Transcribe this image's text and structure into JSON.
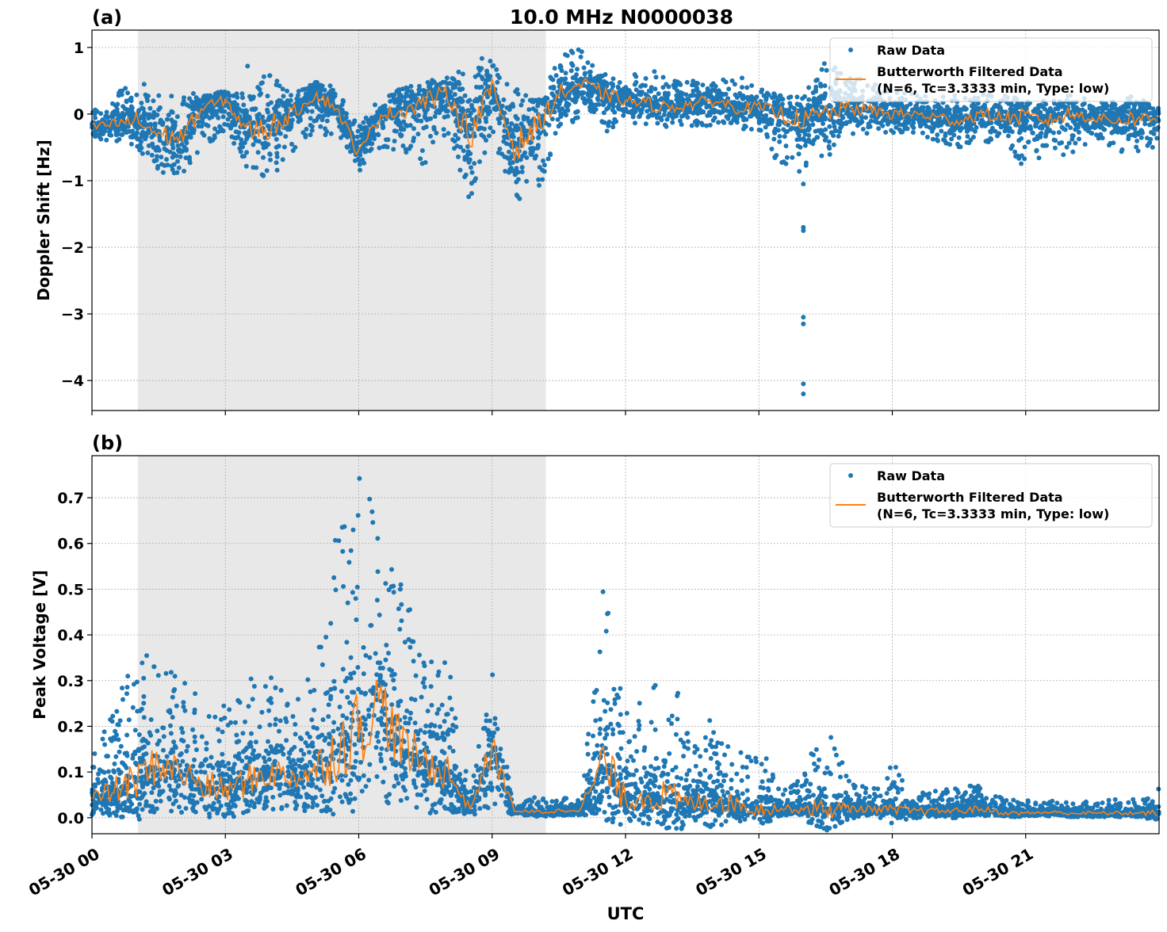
{
  "figure_title": "10.0 MHz N0000038",
  "xlabel": "UTC",
  "x_ticks": [
    "05-30 00",
    "05-30 03",
    "05-30 06",
    "05-30 09",
    "05-30 12",
    "05-30 15",
    "05-30 18",
    "05-30 21"
  ],
  "x_tick_hours": [
    0,
    3,
    6,
    9,
    12,
    15,
    18,
    21
  ],
  "x_range_hours": [
    0,
    24
  ],
  "shaded_span_hours": [
    1.03,
    10.21
  ],
  "colors": {
    "raw": "#1f77b4",
    "filtered": "#ff7f0e",
    "shade": "#e8e8e8",
    "grid": "#b0b0b0"
  },
  "legend": {
    "raw": "Raw Data",
    "filtered_line1": "Butterworth Filtered Data",
    "filtered_line2": "(N=6, Tc=3.3333 min, Type: low)",
    "placement": "upper right"
  },
  "chart_data": [
    {
      "type": "scatter+line",
      "panel_label": "(a)",
      "ylabel": "Doppler Shift [Hz]",
      "ylim": [
        -4.45,
        1.26
      ],
      "y_ticks": [
        1,
        0,
        -1,
        -2,
        -3,
        -4
      ],
      "y_tick_labels": [
        "1",
        "0",
        "−1",
        "−2",
        "−3",
        "−4"
      ],
      "grid": true,
      "time_hours": [
        0,
        0.5,
        1,
        1.5,
        2,
        2.5,
        3,
        3.5,
        4,
        4.5,
        5,
        5.5,
        6,
        6.5,
        7,
        7.5,
        8,
        8.5,
        9,
        9.5,
        10,
        10.5,
        11,
        11.5,
        12,
        12.5,
        13,
        13.5,
        14,
        14.5,
        15,
        15.5,
        16,
        16.5,
        17,
        17.5,
        18,
        18.5,
        19,
        19.5,
        20,
        20.5,
        21,
        21.5,
        22,
        22.5,
        23,
        23.5,
        24
      ],
      "filtered": [
        -0.2,
        -0.15,
        -0.1,
        -0.3,
        -0.35,
        0.1,
        0.2,
        -0.25,
        -0.2,
        0.0,
        0.3,
        0.1,
        -0.6,
        0.0,
        0.05,
        0.2,
        0.3,
        -0.3,
        0.4,
        -0.5,
        -0.2,
        0.3,
        0.45,
        0.3,
        0.2,
        0.15,
        0.1,
        0.15,
        0.2,
        0.1,
        0.1,
        0.0,
        -0.1,
        0.0,
        0.1,
        0.05,
        0.0,
        0.0,
        -0.05,
        -0.1,
        0.0,
        -0.05,
        -0.05,
        -0.1,
        0.0,
        -0.05,
        -0.1,
        -0.05,
        -0.1
      ],
      "raw_min": [
        -0.4,
        -0.4,
        -0.5,
        -0.9,
        -1.0,
        -0.5,
        -0.3,
        -0.9,
        -1.0,
        -0.6,
        -0.3,
        -0.4,
        -0.9,
        -0.5,
        -0.6,
        -0.8,
        -0.5,
        -1.3,
        -0.3,
        -1.5,
        -1.3,
        -0.2,
        -0.1,
        -0.3,
        -0.1,
        -0.2,
        -0.2,
        -0.2,
        -0.2,
        -0.2,
        -0.3,
        -0.8,
        -0.9,
        -0.7,
        -0.3,
        -0.3,
        -0.3,
        -0.3,
        -0.4,
        -0.5,
        -0.4,
        -0.5,
        -0.9,
        -0.5,
        -0.7,
        -0.4,
        -0.5,
        -0.8,
        -0.5
      ],
      "raw_max": [
        0.05,
        0.3,
        0.55,
        0.3,
        0.3,
        0.35,
        0.35,
        0.3,
        0.7,
        0.3,
        0.5,
        0.4,
        -0.2,
        0.3,
        0.4,
        0.5,
        0.5,
        0.9,
        0.8,
        0.4,
        0.3,
        0.9,
        1.0,
        0.6,
        0.6,
        0.7,
        0.5,
        0.5,
        0.5,
        0.6,
        0.4,
        0.3,
        0.3,
        0.8,
        0.6,
        0.5,
        0.4,
        0.3,
        0.3,
        0.3,
        0.3,
        0.3,
        0.2,
        0.2,
        0.3,
        0.2,
        0.2,
        0.3,
        0.1
      ],
      "outliers": [
        {
          "t": 16.0,
          "v": -1.05
        },
        {
          "t": 16.0,
          "v": -1.7
        },
        {
          "t": 16.0,
          "v": -1.75
        },
        {
          "t": 16.0,
          "v": -3.05
        },
        {
          "t": 16.0,
          "v": -3.15
        },
        {
          "t": 16.0,
          "v": -4.05
        },
        {
          "t": 16.0,
          "v": -4.2
        },
        {
          "t": 3.5,
          "v": 0.72
        }
      ]
    },
    {
      "type": "scatter+line",
      "panel_label": "(b)",
      "ylabel": "Peak Voltage [V]",
      "ylim": [
        -0.035,
        0.792
      ],
      "y_ticks": [
        0.0,
        0.1,
        0.2,
        0.3,
        0.4,
        0.5,
        0.6,
        0.7
      ],
      "y_tick_labels": [
        "0.0",
        "0.1",
        "0.2",
        "0.3",
        "0.4",
        "0.5",
        "0.6",
        "0.7"
      ],
      "grid": true,
      "time_hours": [
        0,
        0.5,
        1,
        1.5,
        2,
        2.5,
        3,
        3.5,
        4,
        4.5,
        5,
        5.5,
        6,
        6.5,
        7,
        7.5,
        8,
        8.5,
        9,
        9.5,
        10,
        10.5,
        11,
        11.5,
        12,
        12.5,
        13,
        13.5,
        14,
        14.5,
        15,
        15.5,
        16,
        16.5,
        17,
        17.5,
        18,
        18.5,
        19,
        19.5,
        20,
        20.5,
        21,
        21.5,
        22,
        22.5,
        23,
        23.5,
        24
      ],
      "filtered": [
        0.04,
        0.06,
        0.08,
        0.12,
        0.1,
        0.07,
        0.06,
        0.08,
        0.1,
        0.09,
        0.1,
        0.15,
        0.2,
        0.25,
        0.15,
        0.12,
        0.1,
        0.02,
        0.15,
        0.015,
        0.012,
        0.015,
        0.02,
        0.12,
        0.04,
        0.05,
        0.04,
        0.03,
        0.04,
        0.03,
        0.02,
        0.02,
        0.02,
        0.02,
        0.02,
        0.02,
        0.015,
        0.015,
        0.015,
        0.015,
        0.02,
        0.01,
        0.01,
        0.012,
        0.01,
        0.01,
        0.01,
        0.01,
        0.01
      ],
      "raw_min": [
        0.01,
        0.01,
        0.01,
        0.01,
        0.01,
        0.01,
        0.01,
        0.01,
        0.01,
        0.01,
        0.01,
        0.02,
        0.03,
        0.03,
        0.02,
        0.01,
        0.01,
        0.005,
        0.01,
        0.005,
        0.005,
        0.005,
        0.005,
        0.01,
        0.005,
        0.005,
        0.005,
        0.005,
        0.005,
        0.005,
        0.005,
        0.005,
        0.005,
        0.005,
        0.005,
        0.005,
        0.005,
        0.005,
        0.005,
        0.005,
        0.005,
        0.005,
        0.005,
        0.005,
        0.005,
        0.005,
        0.005,
        0.005,
        0.005
      ],
      "raw_max": [
        0.15,
        0.25,
        0.38,
        0.36,
        0.3,
        0.3,
        0.25,
        0.31,
        0.31,
        0.25,
        0.33,
        0.64,
        0.75,
        0.7,
        0.5,
        0.35,
        0.35,
        0.05,
        0.34,
        0.02,
        0.05,
        0.05,
        0.05,
        0.52,
        0.24,
        0.27,
        0.36,
        0.15,
        0.26,
        0.15,
        0.17,
        0.06,
        0.1,
        0.22,
        0.1,
        0.06,
        0.12,
        0.07,
        0.06,
        0.07,
        0.07,
        0.04,
        0.04,
        0.04,
        0.04,
        0.04,
        0.04,
        0.04,
        0.07
      ],
      "outliers": []
    }
  ]
}
